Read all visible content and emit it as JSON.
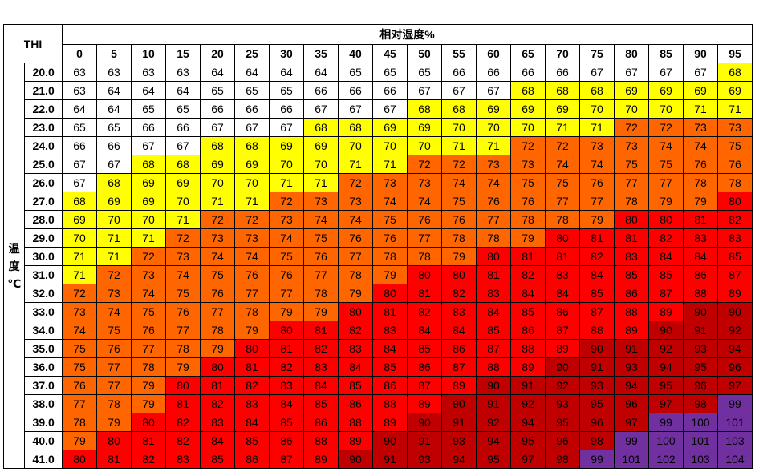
{
  "chart_data": {
    "type": "heatmap",
    "title": "THI",
    "xlabel": "相对湿度%",
    "ylabel_chars": [
      "温",
      "度",
      "℃"
    ],
    "humidity": [
      0,
      5,
      10,
      15,
      20,
      25,
      30,
      35,
      40,
      45,
      50,
      55,
      60,
      65,
      70,
      75,
      80,
      85,
      90,
      95
    ],
    "temperatures": [
      "20.0",
      "21.0",
      "22.0",
      "23.0",
      "24.0",
      "25.0",
      "26.0",
      "27.0",
      "28.0",
      "29.0",
      "30.0",
      "31.0",
      "32.0",
      "33.0",
      "34.0",
      "35.0",
      "36.0",
      "37.0",
      "38.0",
      "39.0",
      "40.0",
      "41.0"
    ],
    "values": [
      [
        63,
        63,
        63,
        63,
        64,
        64,
        64,
        64,
        65,
        65,
        65,
        66,
        66,
        66,
        66,
        67,
        67,
        67,
        67,
        68
      ],
      [
        63,
        64,
        64,
        64,
        65,
        65,
        65,
        66,
        66,
        66,
        67,
        67,
        67,
        68,
        68,
        68,
        69,
        69,
        69,
        69
      ],
      [
        64,
        64,
        65,
        65,
        66,
        66,
        66,
        67,
        67,
        67,
        68,
        68,
        69,
        69,
        69,
        70,
        70,
        70,
        71,
        71
      ],
      [
        65,
        65,
        66,
        66,
        67,
        67,
        67,
        68,
        68,
        69,
        69,
        70,
        70,
        70,
        71,
        71,
        72,
        72,
        73,
        73
      ],
      [
        66,
        66,
        67,
        67,
        68,
        68,
        69,
        69,
        70,
        70,
        70,
        71,
        71,
        72,
        72,
        73,
        73,
        74,
        74,
        75
      ],
      [
        67,
        67,
        68,
        68,
        69,
        69,
        70,
        70,
        71,
        71,
        72,
        72,
        73,
        73,
        74,
        74,
        75,
        75,
        76,
        76
      ],
      [
        67,
        68,
        69,
        69,
        70,
        70,
        71,
        71,
        72,
        73,
        73,
        74,
        74,
        75,
        75,
        76,
        77,
        77,
        78,
        78
      ],
      [
        68,
        69,
        69,
        70,
        71,
        71,
        72,
        73,
        73,
        74,
        74,
        75,
        76,
        76,
        77,
        77,
        78,
        79,
        79,
        80
      ],
      [
        69,
        70,
        70,
        71,
        72,
        72,
        73,
        74,
        74,
        75,
        76,
        76,
        77,
        78,
        78,
        79,
        80,
        80,
        81,
        82
      ],
      [
        70,
        71,
        71,
        72,
        73,
        73,
        74,
        75,
        76,
        76,
        77,
        78,
        78,
        79,
        80,
        81,
        81,
        82,
        83,
        83
      ],
      [
        71,
        71,
        72,
        73,
        74,
        74,
        75,
        76,
        77,
        78,
        78,
        79,
        80,
        81,
        81,
        82,
        83,
        84,
        84,
        85
      ],
      [
        71,
        72,
        73,
        74,
        75,
        76,
        76,
        77,
        78,
        79,
        80,
        80,
        81,
        82,
        83,
        84,
        85,
        85,
        86,
        87
      ],
      [
        72,
        73,
        74,
        75,
        76,
        77,
        77,
        78,
        79,
        80,
        81,
        82,
        83,
        84,
        84,
        85,
        86,
        87,
        88,
        89
      ],
      [
        73,
        74,
        75,
        76,
        77,
        78,
        79,
        79,
        80,
        81,
        82,
        83,
        84,
        85,
        86,
        87,
        88,
        89,
        90,
        90
      ],
      [
        74,
        75,
        76,
        77,
        78,
        79,
        80,
        81,
        82,
        83,
        84,
        84,
        85,
        86,
        87,
        88,
        89,
        90,
        91,
        92
      ],
      [
        75,
        76,
        77,
        78,
        79,
        80,
        81,
        82,
        83,
        84,
        85,
        86,
        87,
        88,
        89,
        90,
        91,
        92,
        93,
        94
      ],
      [
        75,
        77,
        78,
        79,
        80,
        81,
        82,
        83,
        84,
        85,
        86,
        87,
        88,
        89,
        90,
        91,
        93,
        94,
        95,
        96
      ],
      [
        76,
        77,
        79,
        80,
        81,
        82,
        83,
        84,
        85,
        86,
        87,
        89,
        90,
        91,
        92,
        93,
        94,
        95,
        96,
        97
      ],
      [
        77,
        78,
        79,
        81,
        82,
        83,
        84,
        85,
        86,
        88,
        89,
        90,
        91,
        92,
        93,
        95,
        96,
        97,
        98,
        99
      ],
      [
        78,
        79,
        80,
        82,
        83,
        84,
        85,
        86,
        88,
        89,
        90,
        91,
        92,
        94,
        95,
        96,
        97,
        99,
        100,
        101
      ],
      [
        79,
        80,
        81,
        82,
        84,
        85,
        86,
        88,
        89,
        90,
        91,
        93,
        94,
        95,
        96,
        98,
        99,
        100,
        101,
        103
      ],
      [
        80,
        81,
        82,
        83,
        85,
        86,
        87,
        89,
        90,
        91,
        93,
        94,
        95,
        97,
        98,
        99,
        101,
        102,
        103,
        104
      ]
    ],
    "color_scale": [
      {
        "max": 67,
        "color": "#ffffff"
      },
      {
        "max": 71,
        "color": "#ffff00"
      },
      {
        "max": 79,
        "color": "#ff6600"
      },
      {
        "max": 89,
        "color": "#ff0000"
      },
      {
        "max": 98,
        "color": "#c00000"
      },
      {
        "max": 999,
        "color": "#7030a0"
      }
    ]
  }
}
